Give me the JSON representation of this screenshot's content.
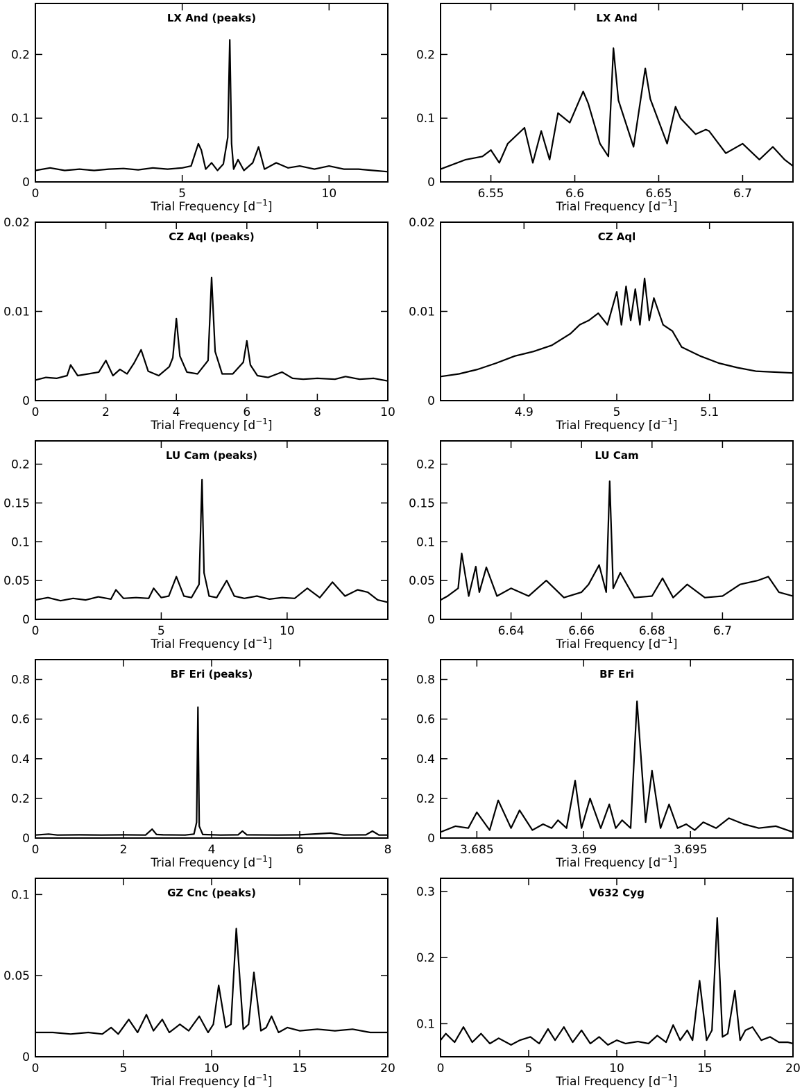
{
  "chart_data": [
    {
      "type": "line",
      "title": "LX And (peaks)",
      "xlabel": "Trial Frequency [d",
      "xlabel_sup": "−1",
      "xlabel_end": "]",
      "xlim": [
        0,
        12
      ],
      "ylim": [
        0,
        0.28
      ],
      "xticks": [
        0,
        5,
        10
      ],
      "xtick_labels": [
        "0",
        "5",
        "10"
      ],
      "yticks": [
        0,
        0.1,
        0.2
      ],
      "ytick_labels": [
        "0",
        "0.1",
        "0.2"
      ],
      "series": [
        {
          "x": [
            0,
            0.5,
            1,
            1.5,
            2,
            2.5,
            3,
            3.5,
            4,
            4.5,
            5,
            5.3,
            5.55,
            5.65,
            5.8,
            6.0,
            6.2,
            6.4,
            6.55,
            6.62,
            6.68,
            6.75,
            6.9,
            7.1,
            7.4,
            7.6,
            7.8,
            8.2,
            8.6,
            9,
            9.5,
            10,
            10.5,
            11,
            11.5,
            12
          ],
          "y": [
            0.018,
            0.022,
            0.018,
            0.02,
            0.018,
            0.02,
            0.021,
            0.019,
            0.022,
            0.02,
            0.022,
            0.025,
            0.06,
            0.05,
            0.02,
            0.03,
            0.018,
            0.028,
            0.07,
            0.223,
            0.06,
            0.02,
            0.035,
            0.018,
            0.03,
            0.055,
            0.02,
            0.03,
            0.022,
            0.025,
            0.02,
            0.025,
            0.02,
            0.02,
            0.018,
            0.016
          ]
        }
      ]
    },
    {
      "type": "line",
      "title": "LX And",
      "xlabel": "Trial Frequency [d",
      "xlabel_sup": "−1",
      "xlabel_end": "]",
      "xlim": [
        6.52,
        6.73
      ],
      "ylim": [
        0,
        0.28
      ],
      "xticks": [
        6.55,
        6.6,
        6.65,
        6.7
      ],
      "xtick_labels": [
        "6.55",
        "6.6",
        "6.65",
        "6.7"
      ],
      "yticks": [
        0,
        0.1,
        0.2
      ],
      "ytick_labels": [
        "0",
        "0.1",
        "0.2"
      ],
      "series": [
        {
          "x": [
            6.52,
            6.535,
            6.545,
            6.55,
            6.555,
            6.56,
            6.57,
            6.575,
            6.58,
            6.585,
            6.59,
            6.597,
            6.605,
            6.608,
            6.615,
            6.62,
            6.623,
            6.626,
            6.635,
            6.642,
            6.645,
            6.655,
            6.66,
            6.663,
            6.672,
            6.678,
            6.68,
            6.69,
            6.7,
            6.71,
            6.718,
            6.725,
            6.73
          ],
          "y": [
            0.02,
            0.035,
            0.04,
            0.05,
            0.03,
            0.06,
            0.085,
            0.03,
            0.08,
            0.035,
            0.108,
            0.093,
            0.142,
            0.123,
            0.06,
            0.04,
            0.21,
            0.128,
            0.055,
            0.178,
            0.13,
            0.06,
            0.118,
            0.1,
            0.075,
            0.082,
            0.08,
            0.045,
            0.06,
            0.035,
            0.055,
            0.035,
            0.025
          ]
        }
      ]
    },
    {
      "type": "line",
      "title": "CZ Aql (peaks)",
      "xlabel": "Trial Frequency [d",
      "xlabel_sup": "−1",
      "xlabel_end": "]",
      "xlim": [
        0,
        10
      ],
      "ylim": [
        0,
        0.02
      ],
      "xticks": [
        0,
        2,
        4,
        6,
        8,
        10
      ],
      "xtick_labels": [
        "0",
        "2",
        "4",
        "6",
        "8",
        "10"
      ],
      "yticks": [
        0,
        0.01,
        0.02
      ],
      "ytick_labels": [
        "0",
        "0.01",
        "0.02"
      ],
      "series": [
        {
          "x": [
            0,
            0.3,
            0.6,
            0.9,
            1,
            1.2,
            1.5,
            1.8,
            2,
            2.2,
            2.4,
            2.6,
            2.8,
            3,
            3.2,
            3.5,
            3.8,
            3.9,
            4,
            4.1,
            4.3,
            4.6,
            4.9,
            5,
            5.1,
            5.3,
            5.6,
            5.9,
            6,
            6.1,
            6.3,
            6.6,
            7,
            7.3,
            7.6,
            8,
            8.5,
            8.8,
            9.2,
            9.6,
            10
          ],
          "y": [
            0.0023,
            0.0026,
            0.0025,
            0.0028,
            0.004,
            0.0028,
            0.003,
            0.0032,
            0.0045,
            0.0028,
            0.0035,
            0.003,
            0.0042,
            0.0057,
            0.0033,
            0.0028,
            0.0038,
            0.0048,
            0.0092,
            0.005,
            0.0032,
            0.003,
            0.0045,
            0.0138,
            0.0055,
            0.003,
            0.003,
            0.0043,
            0.0067,
            0.004,
            0.0028,
            0.0026,
            0.0032,
            0.0025,
            0.0024,
            0.0025,
            0.0024,
            0.0027,
            0.0024,
            0.0025,
            0.0022
          ]
        }
      ]
    },
    {
      "type": "line",
      "title": "CZ Aql",
      "xlabel": "Trial Frequency [d",
      "xlabel_sup": "−1",
      "xlabel_end": "]",
      "xlim": [
        4.81,
        5.19
      ],
      "ylim": [
        0,
        0.02
      ],
      "xticks": [
        4.9,
        5,
        5.1
      ],
      "xtick_labels": [
        "4.9",
        "5",
        "5.1"
      ],
      "yticks": [
        0,
        0.01,
        0.02
      ],
      "ytick_labels": [
        "0",
        "0.01",
        "0.02"
      ],
      "series": [
        {
          "x": [
            4.81,
            4.83,
            4.85,
            4.87,
            4.89,
            4.91,
            4.93,
            4.95,
            4.96,
            4.97,
            4.98,
            4.99,
            5.0,
            5.005,
            5.01,
            5.015,
            5.02,
            5.025,
            5.03,
            5.035,
            5.04,
            5.05,
            5.06,
            5.07,
            5.09,
            5.11,
            5.13,
            5.15,
            5.17,
            5.19
          ],
          "y": [
            0.0027,
            0.003,
            0.0035,
            0.0042,
            0.005,
            0.0055,
            0.0062,
            0.0075,
            0.0085,
            0.009,
            0.0098,
            0.0085,
            0.0122,
            0.0085,
            0.0128,
            0.009,
            0.0125,
            0.0085,
            0.0137,
            0.009,
            0.0115,
            0.0085,
            0.0078,
            0.006,
            0.005,
            0.0042,
            0.0037,
            0.0033,
            0.0032,
            0.0031
          ]
        }
      ]
    },
    {
      "type": "line",
      "title": "LU Cam (peaks)",
      "xlabel": "Trial Frequency [d",
      "xlabel_sup": "−1",
      "xlabel_end": "]",
      "xlim": [
        0,
        14
      ],
      "ylim": [
        0,
        0.23
      ],
      "xticks": [
        0,
        5,
        10
      ],
      "xtick_labels": [
        "0",
        "5",
        "10"
      ],
      "yticks": [
        0,
        0.05,
        0.1,
        0.15,
        0.2
      ],
      "ytick_labels": [
        "0",
        "0.05",
        "0.1",
        "0.15",
        "0.2"
      ],
      "series": [
        {
          "x": [
            0,
            0.5,
            1,
            1.5,
            2,
            2.5,
            3,
            3.2,
            3.5,
            4,
            4.5,
            4.7,
            5,
            5.3,
            5.6,
            5.9,
            6.2,
            6.5,
            6.62,
            6.7,
            6.9,
            7.2,
            7.6,
            7.9,
            8.3,
            8.8,
            9.3,
            9.8,
            10.3,
            10.8,
            11.3,
            11.8,
            12.3,
            12.8,
            13.2,
            13.6,
            14
          ],
          "y": [
            0.025,
            0.028,
            0.024,
            0.027,
            0.025,
            0.029,
            0.026,
            0.038,
            0.027,
            0.028,
            0.027,
            0.04,
            0.028,
            0.03,
            0.055,
            0.03,
            0.028,
            0.045,
            0.18,
            0.06,
            0.03,
            0.028,
            0.05,
            0.03,
            0.027,
            0.03,
            0.026,
            0.028,
            0.027,
            0.04,
            0.028,
            0.048,
            0.03,
            0.038,
            0.035,
            0.025,
            0.022
          ]
        }
      ]
    },
    {
      "type": "line",
      "title": "LU Cam",
      "xlabel": "Trial Frequency [d",
      "xlabel_sup": "−1",
      "xlabel_end": "]",
      "xlim": [
        6.62,
        6.72
      ],
      "ylim": [
        0,
        0.23
      ],
      "xticks": [
        6.64,
        6.66,
        6.68,
        6.7
      ],
      "xtick_labels": [
        "6.64",
        "6.66",
        "6.68",
        "6.7"
      ],
      "yticks": [
        0,
        0.05,
        0.1,
        0.15,
        0.2
      ],
      "ytick_labels": [
        "0",
        "0.05",
        "0.1",
        "0.15",
        "0.2"
      ],
      "series": [
        {
          "x": [
            6.62,
            6.622,
            6.625,
            6.626,
            6.628,
            6.63,
            6.631,
            6.633,
            6.636,
            6.64,
            6.645,
            6.65,
            6.655,
            6.66,
            6.662,
            6.665,
            6.667,
            6.668,
            6.669,
            6.671,
            6.675,
            6.68,
            6.683,
            6.686,
            6.69,
            6.695,
            6.7,
            6.705,
            6.71,
            6.713,
            6.716,
            6.72
          ],
          "y": [
            0.025,
            0.03,
            0.04,
            0.085,
            0.03,
            0.068,
            0.035,
            0.067,
            0.03,
            0.04,
            0.03,
            0.05,
            0.028,
            0.035,
            0.045,
            0.07,
            0.035,
            0.178,
            0.04,
            0.06,
            0.028,
            0.03,
            0.053,
            0.028,
            0.045,
            0.028,
            0.03,
            0.045,
            0.05,
            0.055,
            0.035,
            0.03
          ]
        }
      ]
    },
    {
      "type": "line",
      "title": "BF Eri (peaks)",
      "xlabel": "Trial Frequency [d",
      "xlabel_sup": "−1",
      "xlabel_end": "]",
      "xlim": [
        0,
        8
      ],
      "ylim": [
        0,
        0.9
      ],
      "xticks": [
        0,
        2,
        4,
        6,
        8
      ],
      "xtick_labels": [
        "0",
        "2",
        "4",
        "6",
        "8"
      ],
      "yticks": [
        0,
        0.2,
        0.4,
        0.6,
        0.8
      ],
      "ytick_labels": [
        "0",
        "0.2",
        "0.4",
        "0.6",
        "0.8"
      ],
      "series": [
        {
          "x": [
            0,
            0.3,
            0.5,
            1,
            1.5,
            2,
            2.5,
            2.65,
            2.75,
            2.9,
            3.4,
            3.6,
            3.66,
            3.69,
            3.72,
            3.8,
            4.2,
            4.6,
            4.7,
            4.8,
            5.5,
            6.0,
            6.7,
            7.0,
            7.5,
            7.65,
            7.8,
            8
          ],
          "y": [
            0.015,
            0.02,
            0.015,
            0.016,
            0.015,
            0.016,
            0.015,
            0.045,
            0.018,
            0.016,
            0.015,
            0.02,
            0.08,
            0.66,
            0.06,
            0.018,
            0.015,
            0.016,
            0.035,
            0.016,
            0.015,
            0.016,
            0.025,
            0.015,
            0.016,
            0.035,
            0.015,
            0.015
          ]
        }
      ]
    },
    {
      "type": "line",
      "title": "BF Eri",
      "xlabel": "Trial Frequency [d",
      "xlabel_sup": "−1",
      "xlabel_end": "]",
      "xlim": [
        3.6833,
        3.6998
      ],
      "ylim": [
        0,
        0.9
      ],
      "xticks": [
        3.685,
        3.69,
        3.695
      ],
      "xtick_labels": [
        "3.685",
        "3.69",
        "3.695"
      ],
      "yticks": [
        0,
        0.2,
        0.4,
        0.6,
        0.8
      ],
      "ytick_labels": [
        "0",
        "0.2",
        "0.4",
        "0.6",
        "0.8"
      ],
      "series": [
        {
          "x": [
            3.6833,
            3.684,
            3.6846,
            3.685,
            3.6856,
            3.686,
            3.6866,
            3.687,
            3.6876,
            3.6881,
            3.6885,
            3.6888,
            3.6892,
            3.6896,
            3.6899,
            3.6903,
            3.6908,
            3.6912,
            3.6915,
            3.6918,
            3.6922,
            3.6925,
            3.6929,
            3.6932,
            3.6936,
            3.694,
            3.6944,
            3.6948,
            3.6952,
            3.6956,
            3.6962,
            3.6968,
            3.6975,
            3.6982,
            3.699,
            3.6998
          ],
          "y": [
            0.03,
            0.06,
            0.05,
            0.13,
            0.04,
            0.19,
            0.05,
            0.14,
            0.04,
            0.07,
            0.05,
            0.09,
            0.05,
            0.29,
            0.05,
            0.2,
            0.05,
            0.17,
            0.05,
            0.09,
            0.05,
            0.69,
            0.08,
            0.34,
            0.05,
            0.17,
            0.05,
            0.07,
            0.04,
            0.08,
            0.05,
            0.1,
            0.07,
            0.05,
            0.06,
            0.03
          ]
        }
      ]
    },
    {
      "type": "line",
      "title": "GZ Cnc (peaks)",
      "xlabel": "Trial Frequency [d",
      "xlabel_sup": "−1",
      "xlabel_end": "]",
      "xlim": [
        0,
        20
      ],
      "ylim": [
        0,
        0.11
      ],
      "xticks": [
        0,
        5,
        10,
        15,
        20
      ],
      "xtick_labels": [
        "0",
        "5",
        "10",
        "15",
        "20"
      ],
      "yticks": [
        0,
        0.05,
        0.1
      ],
      "ytick_labels": [
        "0",
        "0.05",
        "0.1"
      ],
      "series": [
        {
          "x": [
            0,
            1,
            2,
            3,
            3.8,
            4.3,
            4.7,
            5.3,
            5.8,
            6.3,
            6.7,
            7.2,
            7.6,
            8.2,
            8.7,
            9.3,
            9.8,
            10.1,
            10.4,
            10.8,
            11.1,
            11.4,
            11.8,
            12.1,
            12.4,
            12.8,
            13.1,
            13.4,
            13.8,
            14.3,
            15,
            16,
            17,
            18,
            19,
            20
          ],
          "y": [
            0.015,
            0.015,
            0.014,
            0.015,
            0.014,
            0.018,
            0.014,
            0.023,
            0.015,
            0.026,
            0.016,
            0.023,
            0.015,
            0.02,
            0.016,
            0.025,
            0.015,
            0.02,
            0.044,
            0.018,
            0.02,
            0.079,
            0.017,
            0.02,
            0.052,
            0.016,
            0.018,
            0.025,
            0.015,
            0.018,
            0.016,
            0.017,
            0.016,
            0.017,
            0.015,
            0.015
          ]
        }
      ]
    },
    {
      "type": "line",
      "title": "V632 Cyg",
      "xlabel": "Trial Frequency [d",
      "xlabel_sup": "−1",
      "xlabel_end": "]",
      "xlim": [
        0,
        20
      ],
      "ylim": [
        0.05,
        0.32
      ],
      "xticks": [
        0,
        5,
        10,
        15,
        20
      ],
      "xtick_labels": [
        "0",
        "5",
        "10",
        "15",
        "20"
      ],
      "yticks": [
        0.1,
        0.2,
        0.3
      ],
      "ytick_labels": [
        "0.1",
        "0.2",
        "0.3"
      ],
      "series": [
        {
          "x": [
            0,
            0.3,
            0.8,
            1.3,
            1.8,
            2.3,
            2.8,
            3.3,
            4,
            4.5,
            5.1,
            5.6,
            6.1,
            6.5,
            7.0,
            7.5,
            8.0,
            8.5,
            9.0,
            9.5,
            10,
            10.5,
            11.2,
            11.8,
            12.3,
            12.8,
            13.2,
            13.6,
            14,
            14.3,
            14.7,
            15.1,
            15.4,
            15.7,
            16.0,
            16.3,
            16.7,
            17.0,
            17.3,
            17.7,
            18.2,
            18.7,
            19.2,
            19.7,
            20
          ],
          "y": [
            0.075,
            0.085,
            0.072,
            0.095,
            0.072,
            0.085,
            0.07,
            0.078,
            0.068,
            0.075,
            0.08,
            0.07,
            0.092,
            0.075,
            0.095,
            0.072,
            0.09,
            0.07,
            0.08,
            0.068,
            0.075,
            0.07,
            0.073,
            0.07,
            0.082,
            0.072,
            0.098,
            0.075,
            0.09,
            0.075,
            0.165,
            0.075,
            0.09,
            0.26,
            0.08,
            0.085,
            0.15,
            0.075,
            0.09,
            0.095,
            0.075,
            0.08,
            0.072,
            0.072,
            0.07
          ]
        }
      ]
    }
  ]
}
